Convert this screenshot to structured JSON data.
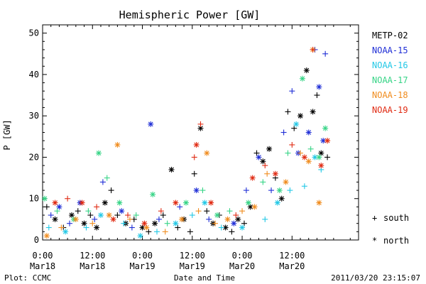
{
  "chart_data": {
    "type": "scatter",
    "title": "Hemispheric Power [GW]",
    "ylabel": "P [GW]",
    "xlabel": "Date and Time",
    "ylim": [
      0,
      52
    ],
    "xlim": [
      "2011-03-18T00:00",
      "2011-03-21T04:00"
    ],
    "yticks": [
      0,
      10,
      20,
      30,
      40,
      50
    ],
    "xticks": [
      {
        "time": "2011-03-18T00:00",
        "line1": "0:00",
        "line2": "Mar18"
      },
      {
        "time": "2011-03-18T12:00",
        "line1": "12:00",
        "line2": "Mar18"
      },
      {
        "time": "2011-03-19T00:00",
        "line1": "0:00",
        "line2": "Mar19"
      },
      {
        "time": "2011-03-19T12:00",
        "line1": "12:00",
        "line2": "Mar19"
      },
      {
        "time": "2011-03-20T00:00",
        "line1": "0:00",
        "line2": "Mar20"
      },
      {
        "time": "2011-03-20T12:00",
        "line1": "12:00",
        "line2": "Mar20"
      }
    ],
    "grid": false,
    "legend_position": "right",
    "series": [
      {
        "name": "METP-02",
        "color": "#000000",
        "points": [
          [
            "2011-03-18T01:00",
            8,
            "s"
          ],
          [
            "2011-03-18T03:00",
            5,
            "n"
          ],
          [
            "2011-03-18T05:00",
            3,
            "s"
          ],
          [
            "2011-03-18T07:00",
            6,
            "n"
          ],
          [
            "2011-03-18T08:30",
            7,
            "s"
          ],
          [
            "2011-03-18T10:00",
            4,
            "n"
          ],
          [
            "2011-03-18T11:30",
            6,
            "s"
          ],
          [
            "2011-03-18T13:00",
            3,
            "n"
          ],
          [
            "2011-03-18T15:00",
            9,
            "n"
          ],
          [
            "2011-03-18T16:30",
            12,
            "s"
          ],
          [
            "2011-03-18T18:00",
            6,
            "s"
          ],
          [
            "2011-03-18T20:00",
            4,
            "n"
          ],
          [
            "2011-03-18T22:00",
            5,
            "s"
          ],
          [
            "2011-03-19T00:00",
            3,
            "n"
          ],
          [
            "2011-03-19T01:30",
            2,
            "s"
          ],
          [
            "2011-03-19T03:00",
            4,
            "n"
          ],
          [
            "2011-03-19T05:00",
            6,
            "s"
          ],
          [
            "2011-03-19T07:00",
            17,
            "n"
          ],
          [
            "2011-03-19T08:30",
            3,
            "s"
          ],
          [
            "2011-03-19T10:00",
            5,
            "n"
          ],
          [
            "2011-03-19T11:30",
            2,
            "s"
          ],
          [
            "2011-03-19T12:30",
            16,
            "s"
          ],
          [
            "2011-03-19T14:00",
            27,
            "n"
          ],
          [
            "2011-03-19T15:30",
            7,
            "s"
          ],
          [
            "2011-03-19T17:00",
            4,
            "n"
          ],
          [
            "2011-03-19T18:30",
            6,
            "s"
          ],
          [
            "2011-03-19T20:00",
            3,
            "n"
          ],
          [
            "2011-03-19T21:30",
            2,
            "s"
          ],
          [
            "2011-03-19T23:00",
            5,
            "n"
          ],
          [
            "2011-03-20T00:30",
            4,
            "s"
          ],
          [
            "2011-03-20T02:00",
            8,
            "n"
          ],
          [
            "2011-03-20T03:30",
            21,
            "s"
          ],
          [
            "2011-03-20T05:00",
            19,
            "n"
          ],
          [
            "2011-03-20T06:30",
            22,
            "n"
          ],
          [
            "2011-03-20T08:00",
            15,
            "s"
          ],
          [
            "2011-03-20T09:30",
            10,
            "n"
          ],
          [
            "2011-03-20T11:00",
            31,
            "s"
          ],
          [
            "2011-03-20T12:30",
            27,
            "s"
          ],
          [
            "2011-03-20T14:00",
            30,
            "n"
          ],
          [
            "2011-03-20T15:30",
            41,
            "n"
          ],
          [
            "2011-03-20T17:00",
            31,
            "n"
          ],
          [
            "2011-03-20T18:00",
            35,
            "s"
          ],
          [
            "2011-03-20T19:00",
            21,
            "n"
          ],
          [
            "2011-03-20T20:30",
            20,
            "s"
          ]
        ]
      },
      {
        "name": "NOAA-15",
        "color": "#1f2ed6",
        "points": [
          [
            "2011-03-18T02:00",
            6,
            "s"
          ],
          [
            "2011-03-18T04:00",
            8,
            "n"
          ],
          [
            "2011-03-18T06:30",
            4,
            "s"
          ],
          [
            "2011-03-18T09:00",
            9,
            "n"
          ],
          [
            "2011-03-18T12:30",
            5,
            "s"
          ],
          [
            "2011-03-18T14:30",
            14,
            "s"
          ],
          [
            "2011-03-18T19:00",
            7,
            "n"
          ],
          [
            "2011-03-18T21:30",
            3,
            "s"
          ],
          [
            "2011-03-19T02:00",
            28,
            "n"
          ],
          [
            "2011-03-19T04:00",
            5,
            "s"
          ],
          [
            "2011-03-19T09:00",
            8,
            "s"
          ],
          [
            "2011-03-19T13:00",
            12,
            "n"
          ],
          [
            "2011-03-19T16:00",
            5,
            "s"
          ],
          [
            "2011-03-19T22:00",
            4,
            "n"
          ],
          [
            "2011-03-20T01:00",
            12,
            "s"
          ],
          [
            "2011-03-20T04:00",
            20,
            "n"
          ],
          [
            "2011-03-20T07:00",
            12,
            "s"
          ],
          [
            "2011-03-20T10:00",
            26,
            "s"
          ],
          [
            "2011-03-20T12:00",
            36,
            "s"
          ],
          [
            "2011-03-20T13:30",
            21,
            "n"
          ],
          [
            "2011-03-20T16:00",
            26,
            "n"
          ],
          [
            "2011-03-20T17:30",
            46,
            "s"
          ],
          [
            "2011-03-20T18:30",
            37,
            "n"
          ],
          [
            "2011-03-20T20:00",
            45,
            "s"
          ],
          [
            "2011-03-20T19:30",
            24,
            "n"
          ]
        ]
      },
      {
        "name": "NOAA-16",
        "color": "#22c8e6",
        "points": [
          [
            "2011-03-18T01:30",
            3,
            "s"
          ],
          [
            "2011-03-18T05:30",
            2,
            "n"
          ],
          [
            "2011-03-18T10:30",
            3,
            "s"
          ],
          [
            "2011-03-18T14:00",
            6,
            "n"
          ],
          [
            "2011-03-18T19:30",
            4,
            "s"
          ],
          [
            "2011-03-18T23:30",
            1,
            "n"
          ],
          [
            "2011-03-19T03:30",
            2,
            "s"
          ],
          [
            "2011-03-19T08:00",
            4,
            "n"
          ],
          [
            "2011-03-19T12:00",
            6,
            "s"
          ],
          [
            "2011-03-19T15:00",
            9,
            "n"
          ],
          [
            "2011-03-19T19:00",
            3,
            "s"
          ],
          [
            "2011-03-20T00:00",
            3,
            "n"
          ],
          [
            "2011-03-20T05:30",
            5,
            "s"
          ],
          [
            "2011-03-20T08:30",
            9,
            "n"
          ],
          [
            "2011-03-20T11:30",
            12,
            "s"
          ],
          [
            "2011-03-20T13:00",
            28,
            "n"
          ],
          [
            "2011-03-20T15:00",
            13,
            "s"
          ],
          [
            "2011-03-20T17:30",
            20,
            "n"
          ],
          [
            "2011-03-20T19:00",
            17,
            "s"
          ]
        ]
      },
      {
        "name": "NOAA-17",
        "color": "#36d486",
        "points": [
          [
            "2011-03-18T00:30",
            10,
            "n"
          ],
          [
            "2011-03-18T03:30",
            7,
            "s"
          ],
          [
            "2011-03-18T07:30",
            5,
            "n"
          ],
          [
            "2011-03-18T11:00",
            7,
            "s"
          ],
          [
            "2011-03-18T13:30",
            21,
            "n"
          ],
          [
            "2011-03-18T15:30",
            15,
            "s"
          ],
          [
            "2011-03-18T18:30",
            9,
            "n"
          ],
          [
            "2011-03-18T22:30",
            6,
            "s"
          ],
          [
            "2011-03-19T02:30",
            11,
            "n"
          ],
          [
            "2011-03-19T06:00",
            4,
            "s"
          ],
          [
            "2011-03-19T10:30",
            9,
            "n"
          ],
          [
            "2011-03-19T14:30",
            12,
            "s"
          ],
          [
            "2011-03-19T18:00",
            6,
            "n"
          ],
          [
            "2011-03-19T21:00",
            7,
            "s"
          ],
          [
            "2011-03-20T01:30",
            9,
            "n"
          ],
          [
            "2011-03-20T05:00",
            14,
            "s"
          ],
          [
            "2011-03-20T09:00",
            12,
            "n"
          ],
          [
            "2011-03-20T11:00",
            21,
            "s"
          ],
          [
            "2011-03-20T14:30",
            39,
            "n"
          ],
          [
            "2011-03-20T16:30",
            22,
            "s"
          ],
          [
            "2011-03-20T18:30",
            20,
            "n"
          ],
          [
            "2011-03-20T20:00",
            27,
            "n"
          ]
        ]
      },
      {
        "name": "NOAA-18",
        "color": "#f08c1e",
        "points": [
          [
            "2011-03-18T01:00",
            1,
            "n"
          ],
          [
            "2011-03-18T04:30",
            3,
            "s"
          ],
          [
            "2011-03-18T08:00",
            5,
            "n"
          ],
          [
            "2011-03-18T12:00",
            4,
            "s"
          ],
          [
            "2011-03-18T16:00",
            6,
            "n"
          ],
          [
            "2011-03-18T18:00",
            23,
            "n"
          ],
          [
            "2011-03-18T21:00",
            5,
            "s"
          ],
          [
            "2011-03-19T01:00",
            3,
            "n"
          ],
          [
            "2011-03-19T05:30",
            2,
            "s"
          ],
          [
            "2011-03-19T09:30",
            5,
            "n"
          ],
          [
            "2011-03-19T13:30",
            7,
            "s"
          ],
          [
            "2011-03-19T15:30",
            21,
            "n"
          ],
          [
            "2011-03-19T17:30",
            4,
            "s"
          ],
          [
            "2011-03-19T20:30",
            5,
            "n"
          ],
          [
            "2011-03-20T00:00",
            7,
            "s"
          ],
          [
            "2011-03-20T03:00",
            8,
            "n"
          ],
          [
            "2011-03-20T06:00",
            16,
            "s"
          ],
          [
            "2011-03-20T10:30",
            14,
            "n"
          ],
          [
            "2011-03-20T14:00",
            21,
            "s"
          ],
          [
            "2011-03-20T16:00",
            19,
            "n"
          ],
          [
            "2011-03-20T17:00",
            46,
            "n"
          ],
          [
            "2011-03-20T18:30",
            9,
            "n"
          ],
          [
            "2011-03-20T20:30",
            24,
            "s"
          ]
        ]
      },
      {
        "name": "NOAA-19",
        "color": "#e02a12",
        "points": [
          [
            "2011-03-18T03:00",
            9,
            "n"
          ],
          [
            "2011-03-18T06:00",
            10,
            "s"
          ],
          [
            "2011-03-18T09:30",
            9,
            "n"
          ],
          [
            "2011-03-18T13:00",
            8,
            "s"
          ],
          [
            "2011-03-18T17:00",
            5,
            "n"
          ],
          [
            "2011-03-18T20:30",
            6,
            "s"
          ],
          [
            "2011-03-19T00:30",
            4,
            "n"
          ],
          [
            "2011-03-19T04:30",
            7,
            "s"
          ],
          [
            "2011-03-19T08:00",
            9,
            "n"
          ],
          [
            "2011-03-19T12:30",
            20,
            "s"
          ],
          [
            "2011-03-19T13:00",
            23,
            "n"
          ],
          [
            "2011-03-19T14:00",
            28,
            "s"
          ],
          [
            "2011-03-19T16:30",
            9,
            "n"
          ],
          [
            "2011-03-19T22:30",
            6,
            "s"
          ],
          [
            "2011-03-20T02:30",
            15,
            "n"
          ],
          [
            "2011-03-20T05:30",
            18,
            "s"
          ],
          [
            "2011-03-20T08:00",
            16,
            "n"
          ],
          [
            "2011-03-20T12:00",
            23,
            "s"
          ],
          [
            "2011-03-20T15:00",
            20,
            "n"
          ],
          [
            "2011-03-20T17:00",
            46,
            "s"
          ],
          [
            "2011-03-20T19:00",
            18,
            "n"
          ],
          [
            "2011-03-20T20:30",
            24,
            "n"
          ]
        ]
      }
    ]
  },
  "legend_symbols": {
    "south_symbol": "+",
    "south_label": "south",
    "north_symbol": "*",
    "north_label": "north"
  },
  "footer": {
    "left": "Plot: CCMC",
    "center": "Date and Time",
    "right": "2011/03/20 23:15:07"
  }
}
